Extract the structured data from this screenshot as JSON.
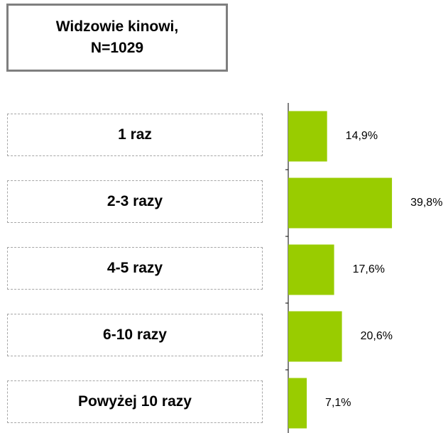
{
  "chart_data": {
    "type": "bar",
    "orientation": "horizontal",
    "title": "Widzowie kinowi,\nN=1029",
    "categories": [
      "1 raz",
      "2-3 razy",
      "4-5 razy",
      "6-10 razy",
      "Powyżej 10 razy"
    ],
    "values": [
      14.9,
      39.8,
      17.6,
      20.6,
      7.1
    ],
    "value_labels": [
      "14,9%",
      "39,8%",
      "17,6%",
      "20,6%",
      "7,1%"
    ],
    "color": "#99cc00"
  }
}
